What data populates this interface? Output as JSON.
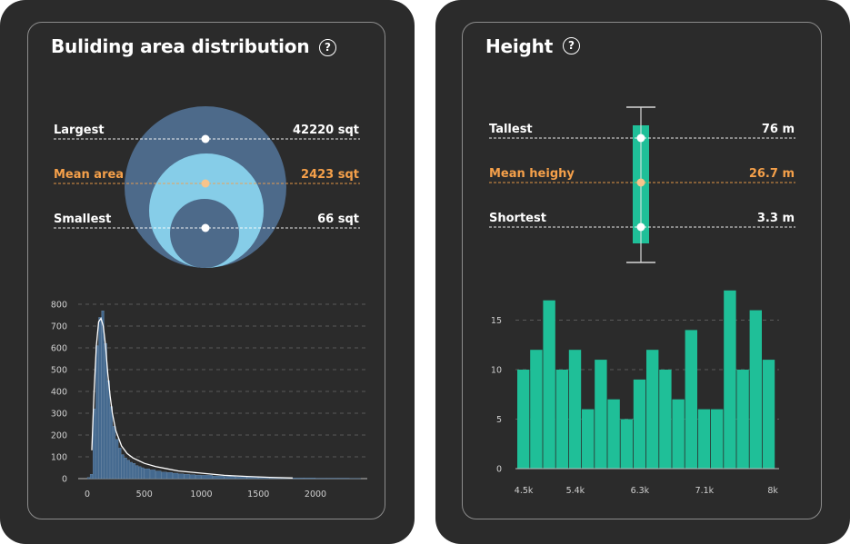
{
  "panels": {
    "area": {
      "title": "Buliding area distribution",
      "help_icon": "question-circle-icon",
      "stats": [
        {
          "label": "Largest",
          "value": "42220 sqt",
          "color": "#ffffff"
        },
        {
          "label": "Mean area",
          "value": "2423 sqt",
          "color": "#f5a04a"
        },
        {
          "label": "Smallest",
          "value": "66 sqt",
          "color": "#ffffff"
        }
      ]
    },
    "height": {
      "title": "Height",
      "help_icon": "question-circle-icon",
      "stats": [
        {
          "label": "Tallest",
          "value": "76 m",
          "color": "#ffffff"
        },
        {
          "label": "Mean heighy",
          "value": "26.7 m",
          "color": "#f5a04a"
        },
        {
          "label": "Shortest",
          "value": "3.3 m",
          "color": "#ffffff"
        }
      ]
    }
  },
  "colors": {
    "panel_bg": "#2b2b2b",
    "card_border": "#8c8c8c",
    "circle_outer": "#4d6a8a",
    "circle_mid": "#86cde8",
    "circle_inner": "#4d6a8a",
    "hist_blue": "#44698f",
    "hist_green": "#1fbf98",
    "mean_accent": "#f5a04a",
    "mean_dot": "#f7c48c"
  },
  "chart_data": [
    {
      "type": "bar",
      "subtype": "histogram",
      "x": [
        0,
        25,
        50,
        75,
        100,
        125,
        150,
        175,
        200,
        225,
        250,
        275,
        300,
        325,
        350,
        375,
        400,
        425,
        450,
        475,
        500,
        550,
        600,
        650,
        700,
        750,
        800,
        850,
        900,
        950,
        1000,
        1100,
        1200,
        1300,
        1400,
        1500,
        1600,
        1700,
        1800,
        1900,
        2000,
        2100,
        2200,
        2300
      ],
      "values": [
        5,
        20,
        320,
        610,
        740,
        770,
        620,
        450,
        330,
        240,
        180,
        140,
        110,
        95,
        85,
        75,
        70,
        60,
        55,
        50,
        45,
        40,
        35,
        30,
        28,
        25,
        22,
        20,
        18,
        16,
        15,
        12,
        10,
        8,
        7,
        6,
        5,
        4,
        3,
        3,
        2,
        2,
        2,
        1
      ],
      "density_curve": {
        "x": [
          40,
          60,
          80,
          100,
          120,
          140,
          160,
          180,
          200,
          220,
          250,
          300,
          350,
          400,
          500,
          600,
          700,
          800,
          1000,
          1200,
          1400,
          1600,
          1800
        ],
        "y": [
          130,
          400,
          610,
          720,
          735,
          700,
          610,
          480,
          380,
          300,
          220,
          150,
          115,
          95,
          70,
          55,
          45,
          35,
          25,
          15,
          10,
          6,
          3
        ]
      },
      "xticks": [
        0,
        500,
        1000,
        1500,
        2000
      ],
      "yticks": [
        0,
        100,
        200,
        300,
        400,
        500,
        600,
        700,
        800
      ],
      "xlim": [
        -20,
        2450
      ],
      "ylim": [
        0,
        800
      ],
      "grid": "horizontal-dashed"
    },
    {
      "type": "bar",
      "subtype": "histogram",
      "values": [
        10,
        12,
        17,
        10,
        12,
        6,
        11,
        7,
        5,
        9,
        12,
        10,
        7,
        14,
        6,
        6,
        18,
        10,
        16,
        11
      ],
      "xtick_labels": [
        "4.5k",
        "5.4k",
        "6.3k",
        "7.1k",
        "8k"
      ],
      "xtick_positions": [
        0.5,
        4.5,
        9.5,
        14.5,
        19.8
      ],
      "yticks": [
        0,
        5,
        10,
        15
      ],
      "ylim": [
        0,
        18
      ],
      "grid": "horizontal-dashed"
    }
  ]
}
